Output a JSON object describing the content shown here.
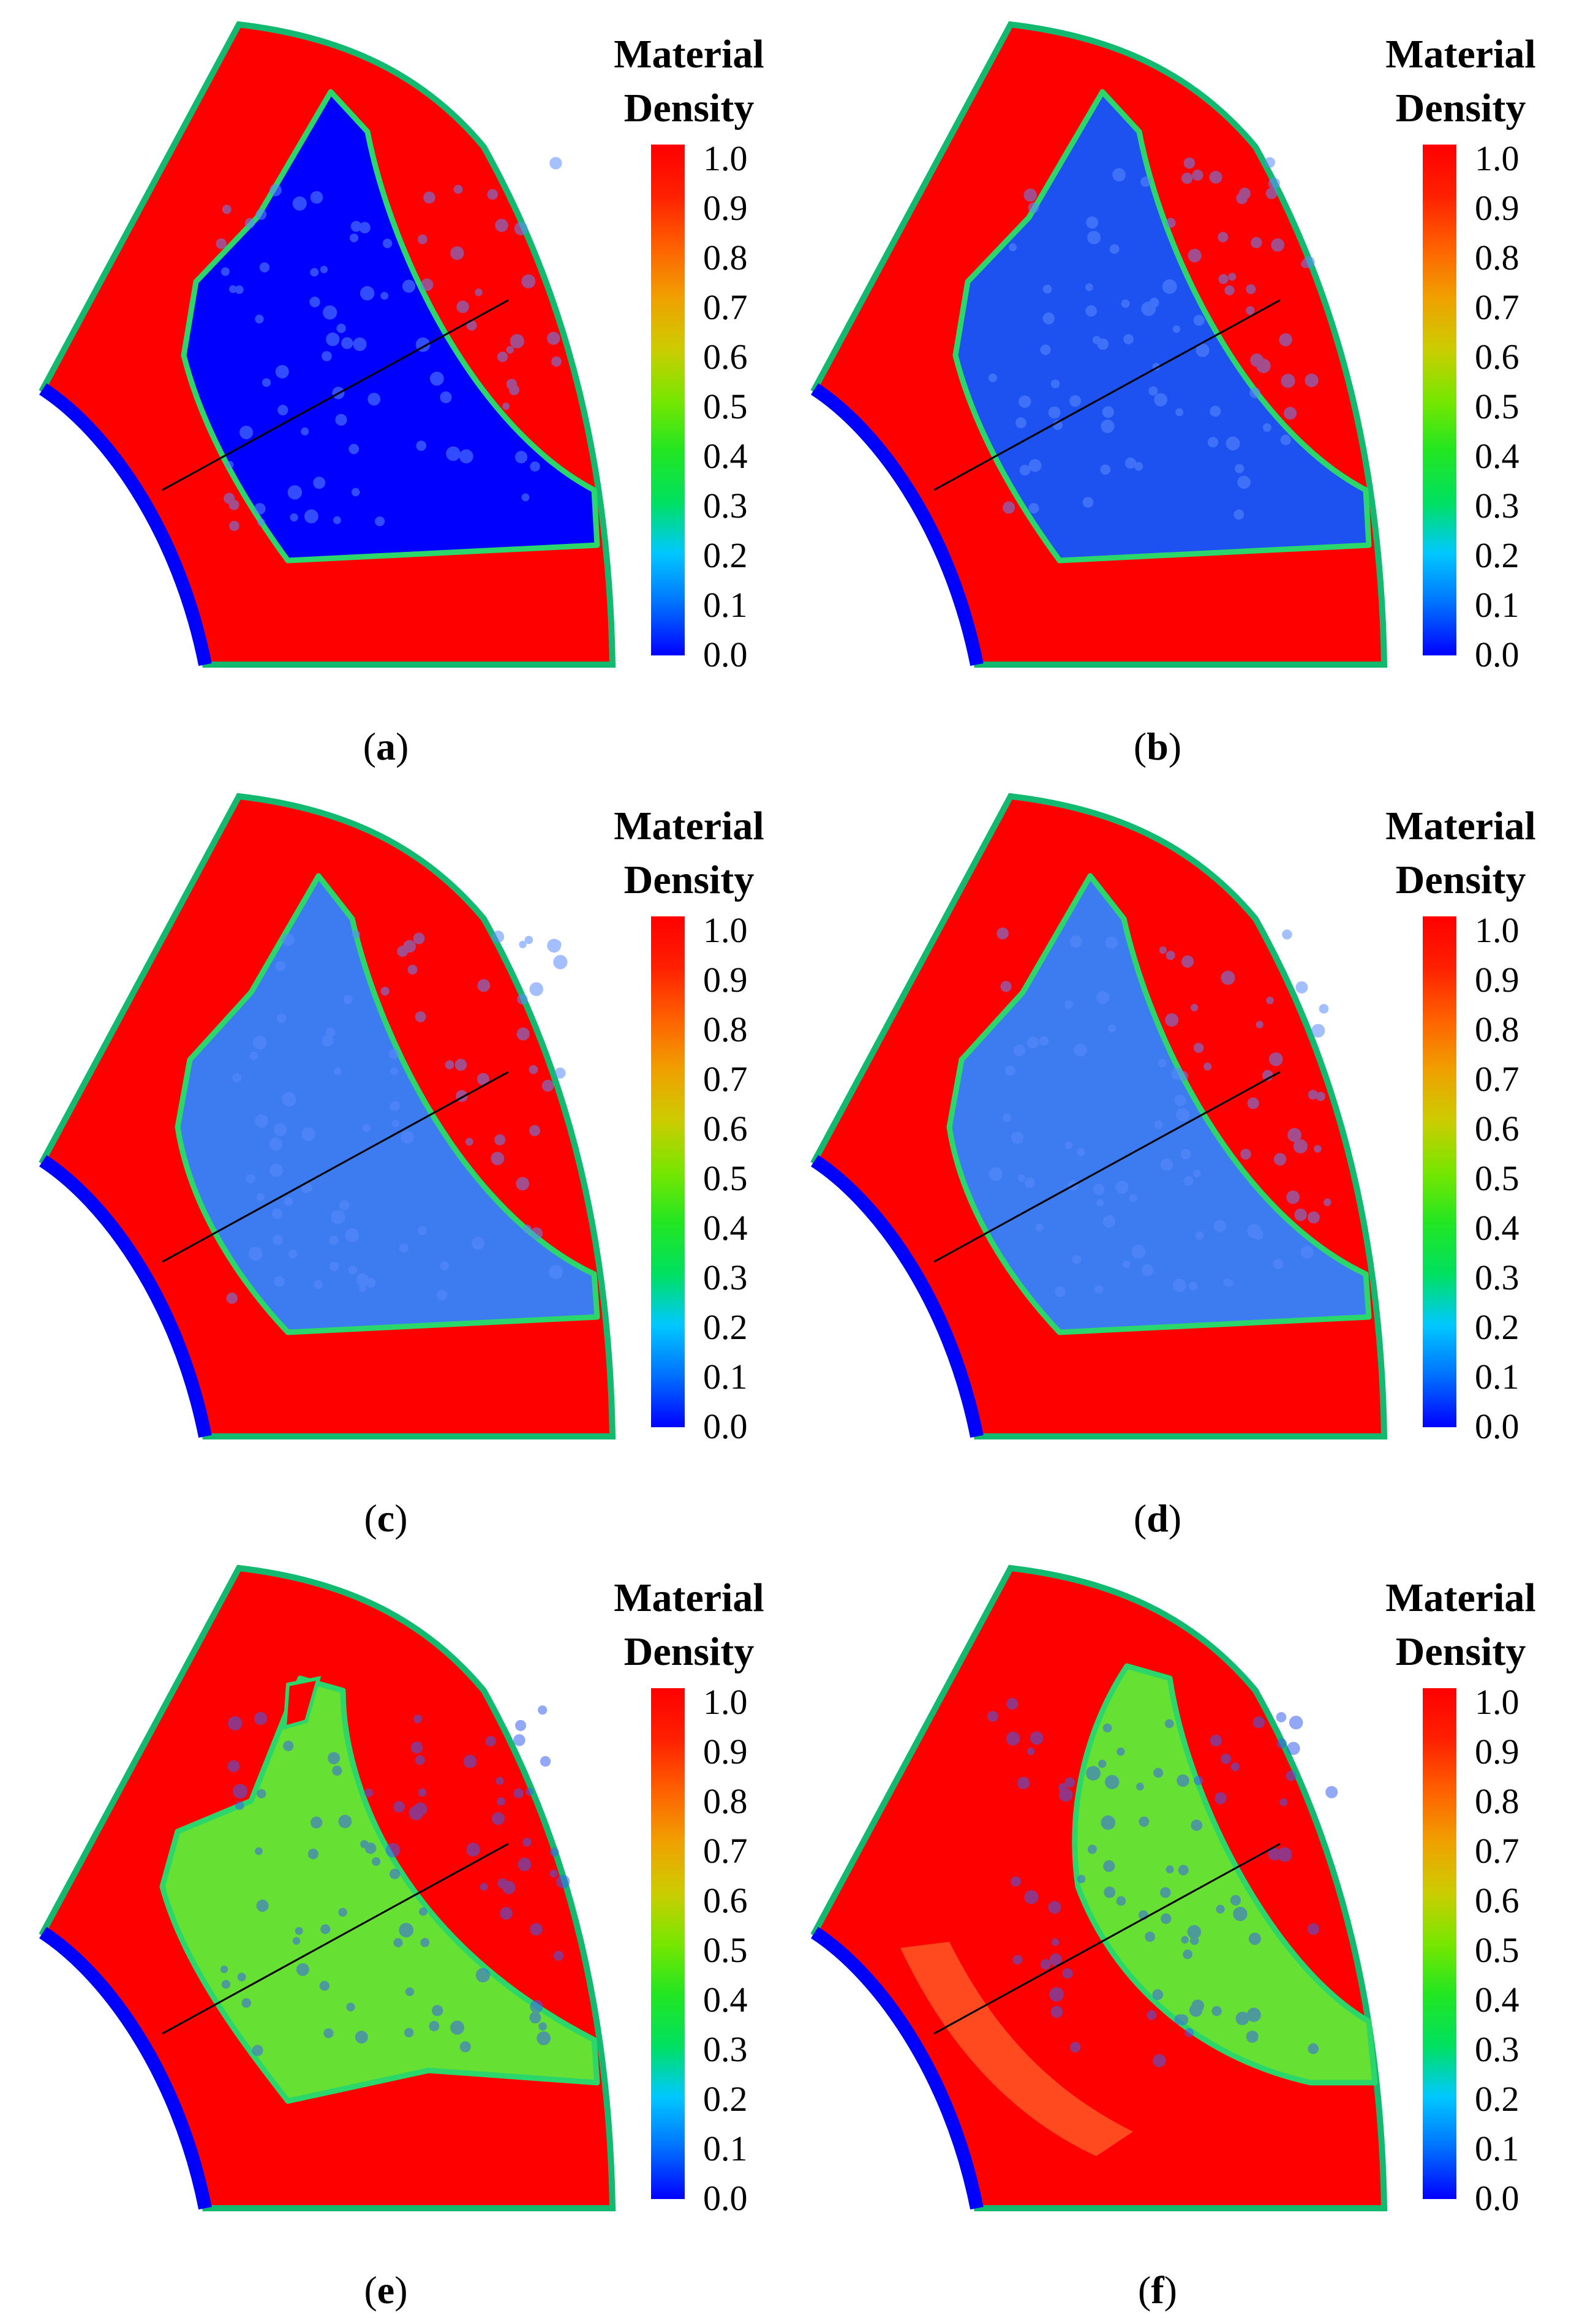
{
  "figure": {
    "legend_title_line1": "Material",
    "legend_title_line2": "Density",
    "ticks": [
      "1.0",
      "0.9",
      "0.8",
      "0.7",
      "0.6",
      "0.5",
      "0.4",
      "0.3",
      "0.2",
      "0.1",
      "0.0"
    ],
    "colormap": [
      "#0000ff",
      "#0070ff",
      "#00c8ff",
      "#00e060",
      "#22e622",
      "#78e600",
      "#cccc00",
      "#f0a000",
      "#ff6000",
      "#ff2000",
      "#ff0000"
    ],
    "colors": {
      "solid": "#ff0000",
      "void": "#0000ff",
      "void_mid": "#1e52f0",
      "intermediate": "#66e033",
      "mixed": "#3c7cf0",
      "edge": "#13b96f"
    },
    "panels": [
      {
        "label": "a",
        "fill": "void"
      },
      {
        "label": "b",
        "fill": "void_mid"
      },
      {
        "label": "c",
        "fill": "mixed"
      },
      {
        "label": "d",
        "fill": "mixed"
      },
      {
        "label": "e",
        "fill": "intermediate"
      },
      {
        "label": "f",
        "fill": "intermediate"
      }
    ]
  }
}
